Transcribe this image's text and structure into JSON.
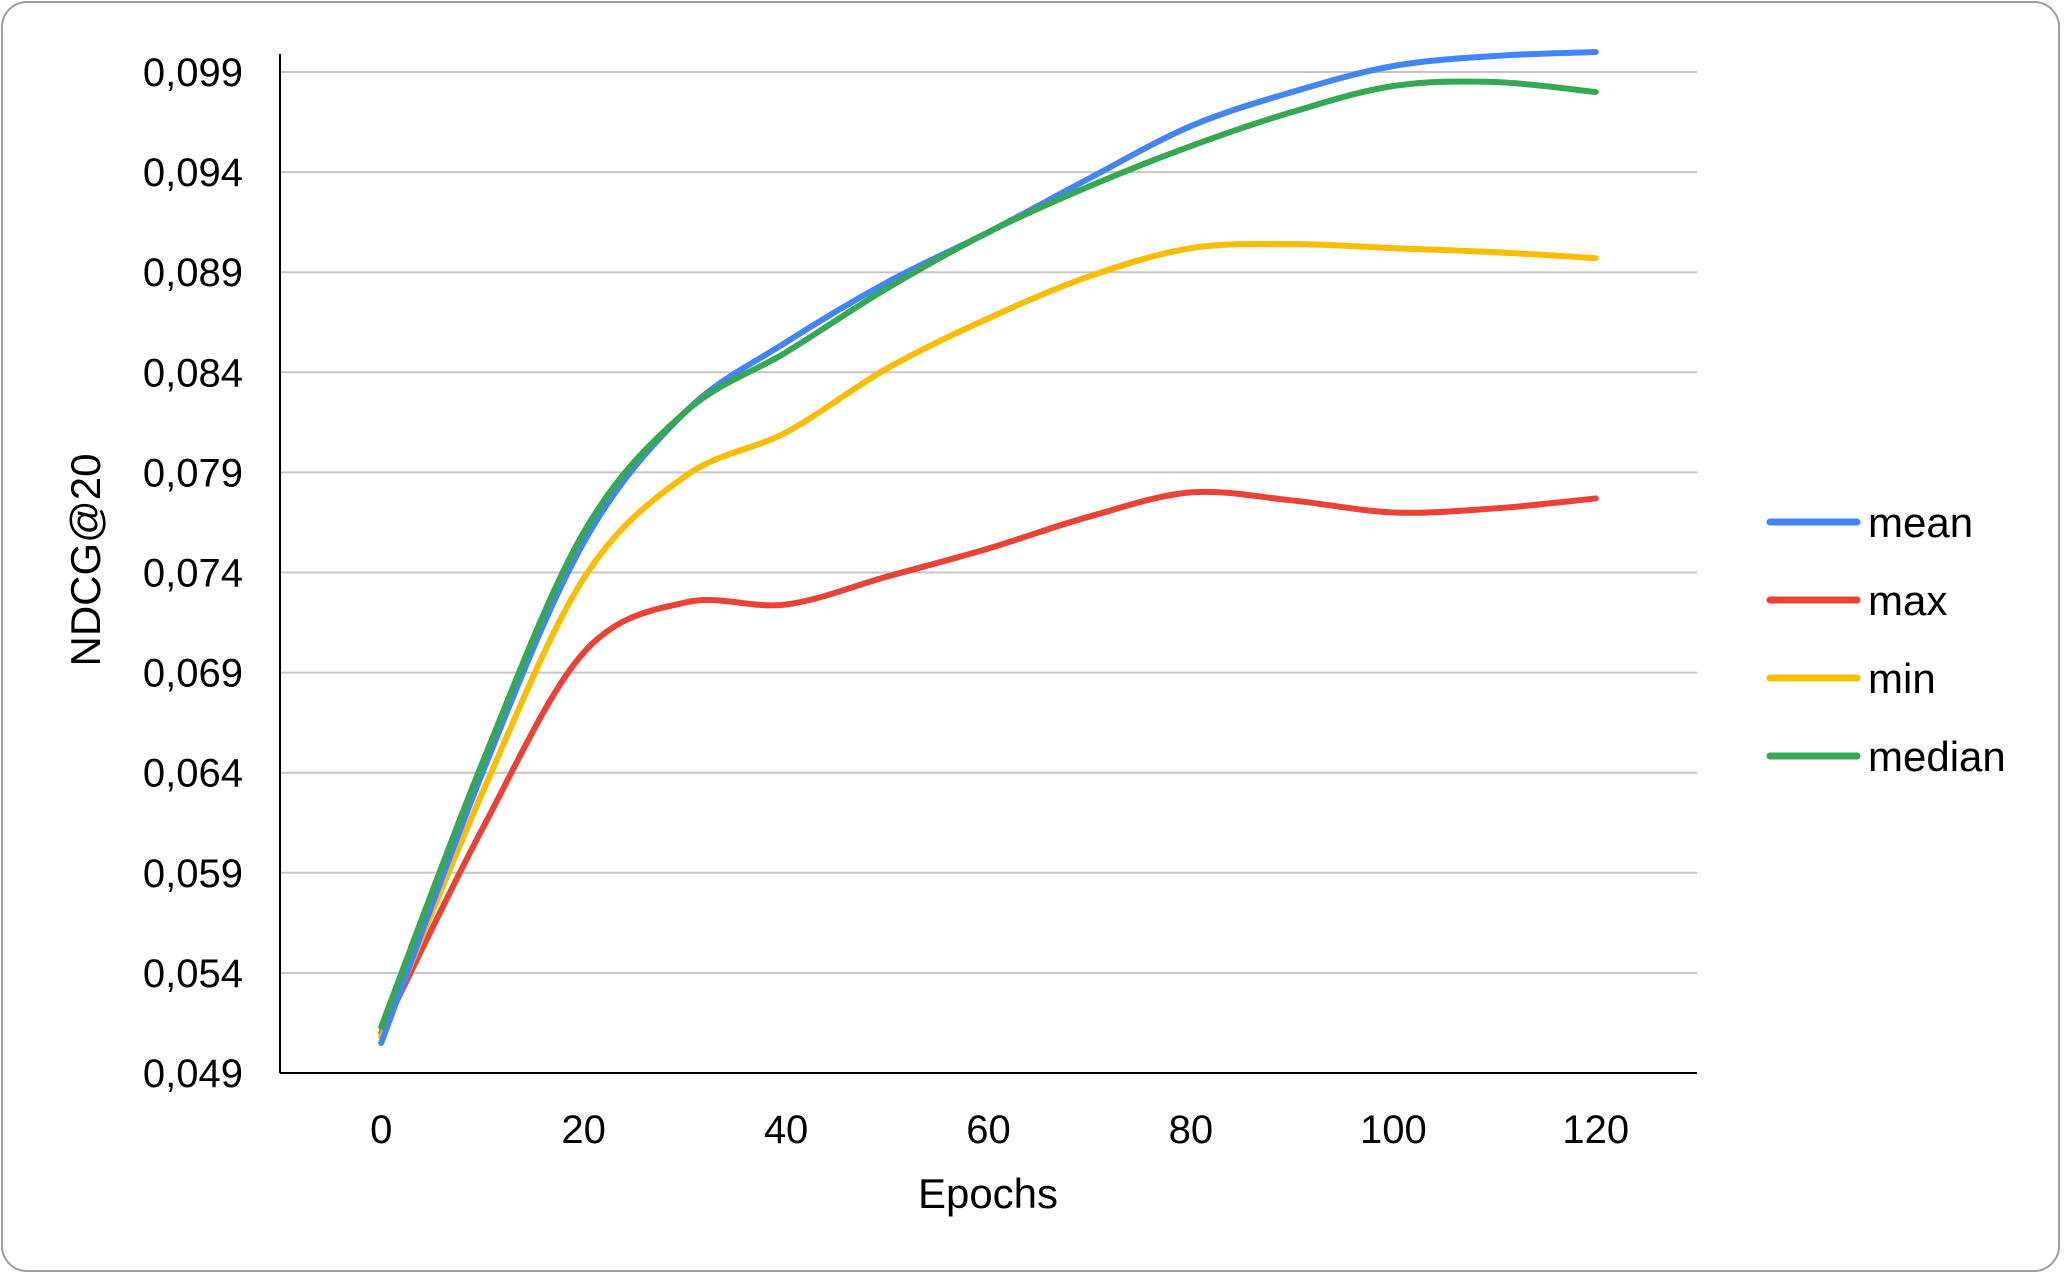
{
  "chart_data": {
    "type": "line",
    "title": "",
    "xlabel": "Epochs",
    "ylabel": "NDCG@20",
    "x": [
      0,
      10,
      20,
      30,
      40,
      50,
      60,
      70,
      80,
      90,
      100,
      110,
      120
    ],
    "xticks": [
      "0",
      "20",
      "40",
      "60",
      "80",
      "100",
      "120"
    ],
    "xtick_values": [
      0,
      20,
      40,
      60,
      80,
      100,
      120
    ],
    "xlim": [
      -10,
      130
    ],
    "yticks": [
      "0,049",
      "0,054",
      "0,059",
      "0,064",
      "0,069",
      "0,074",
      "0,079",
      "0,084",
      "0,089",
      "0,094",
      "0,099"
    ],
    "ytick_values": [
      0.049,
      0.054,
      0.059,
      0.064,
      0.069,
      0.074,
      0.079,
      0.084,
      0.089,
      0.094,
      0.099
    ],
    "ylim": [
      0.049,
      0.099
    ],
    "grid": true,
    "legend_position": "right",
    "series": [
      {
        "name": "mean",
        "color": "#4285F4",
        "values": [
          0.0505,
          0.064,
          0.0755,
          0.082,
          0.0855,
          0.0885,
          0.091,
          0.0937,
          0.0963,
          0.098,
          0.0993,
          0.0998,
          0.1
        ]
      },
      {
        "name": "max",
        "color": "#EA4335",
        "values": [
          0.051,
          0.0612,
          0.07,
          0.0725,
          0.0724,
          0.0738,
          0.0752,
          0.0768,
          0.078,
          0.0776,
          0.077,
          0.0772,
          0.0777
        ]
      },
      {
        "name": "min",
        "color": "#FBBC04",
        "values": [
          0.0508,
          0.063,
          0.0737,
          0.0788,
          0.081,
          0.0842,
          0.0867,
          0.0888,
          0.0902,
          0.0904,
          0.0902,
          0.09,
          0.0897
        ]
      },
      {
        "name": "median",
        "color": "#34A853",
        "values": [
          0.0513,
          0.0645,
          0.076,
          0.082,
          0.085,
          0.0882,
          0.091,
          0.0933,
          0.0953,
          0.097,
          0.0983,
          0.0985,
          0.098
        ]
      }
    ]
  }
}
